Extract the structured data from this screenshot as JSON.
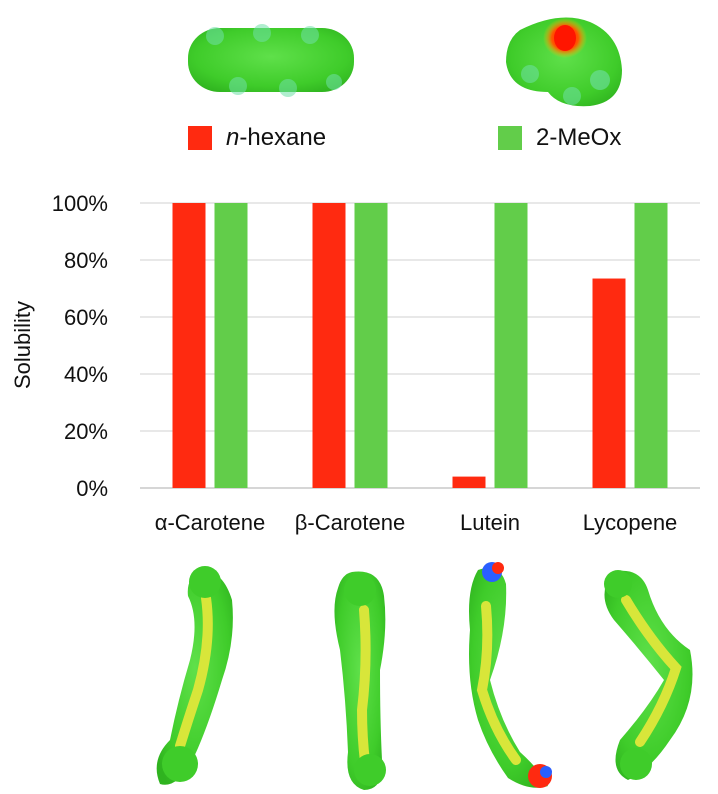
{
  "chart_data": {
    "type": "bar",
    "categories": [
      "α-Carotene",
      "β-Carotene",
      "Lutein",
      "Lycopene"
    ],
    "series": [
      {
        "name": "n-hexane",
        "name_prefix": "n",
        "name_suffix": "-hexane",
        "color": "#ff2a10",
        "values": [
          100,
          100,
          4,
          73.5
        ]
      },
      {
        "name": "2-MeOx",
        "color": "#62cd4a",
        "values": [
          100,
          100,
          100,
          100
        ]
      }
    ],
    "ylabel": "Solubility",
    "ylim": [
      0,
      100
    ],
    "yticks": [
      "0%",
      "20%",
      "40%",
      "60%",
      "80%",
      "100%"
    ],
    "grid": true,
    "legend": "top"
  },
  "molecules": {
    "solvents": [
      "n-hexane surface model",
      "2-MeOx surface model"
    ],
    "carotenoids": [
      "α-Carotene surface model",
      "β-Carotene surface model",
      "Lutein surface model",
      "Lycopene surface model"
    ]
  }
}
